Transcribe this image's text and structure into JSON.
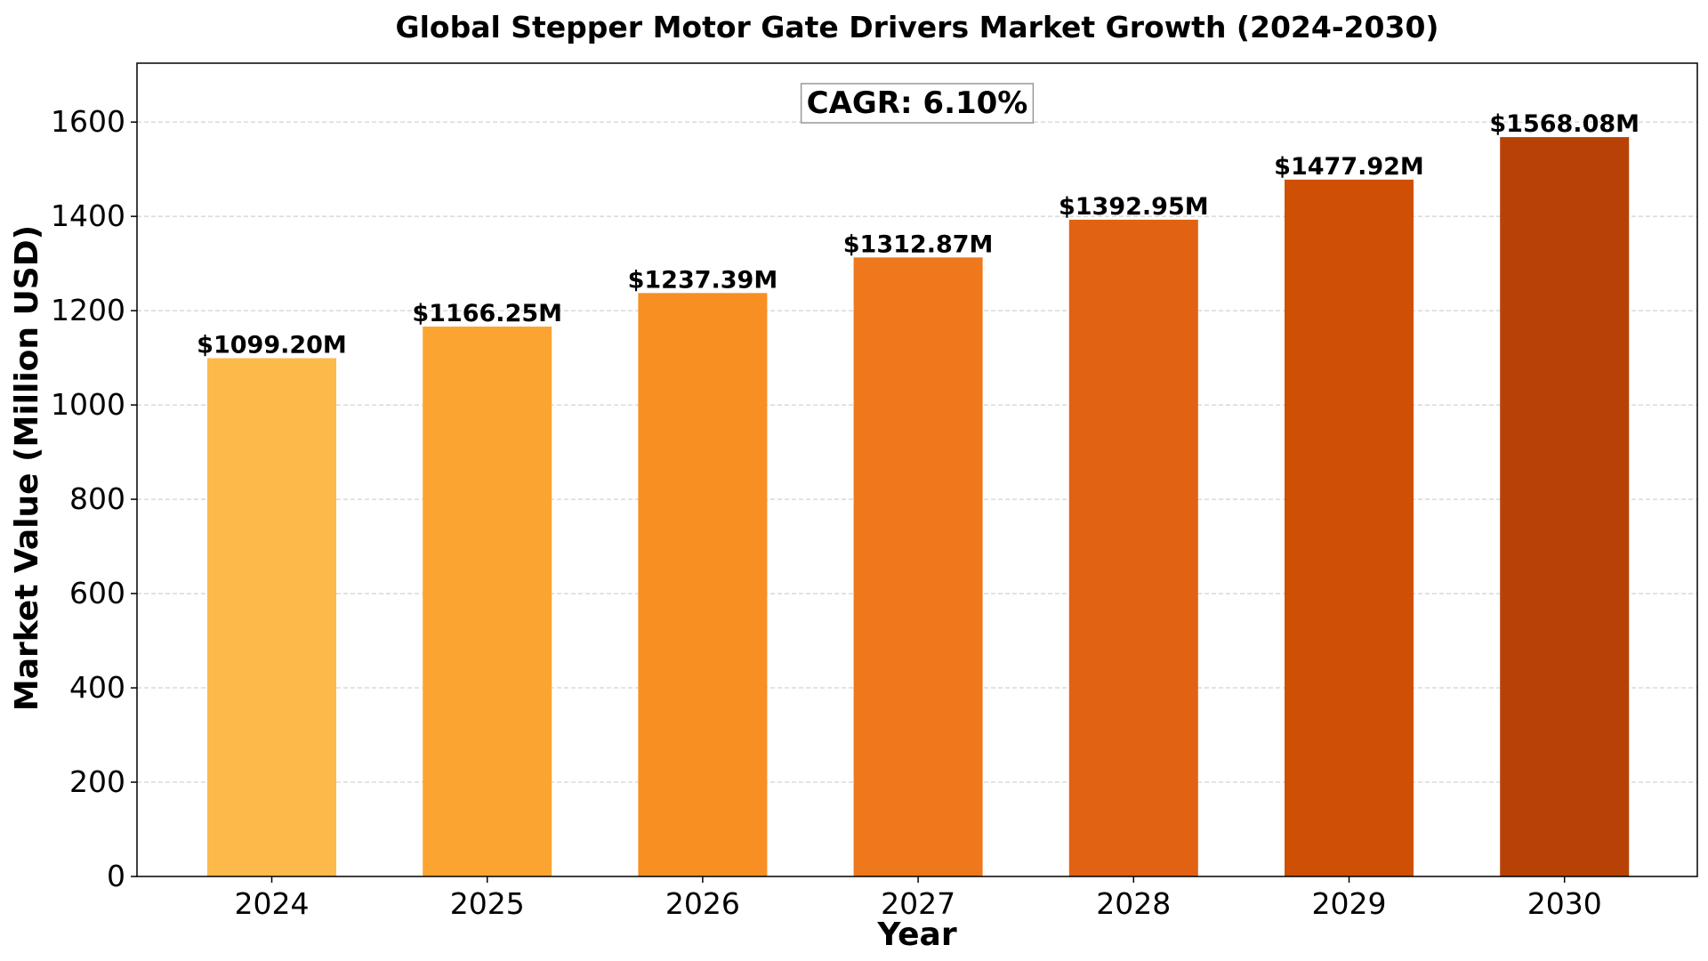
{
  "chart_data": {
    "type": "bar",
    "title": "Global Stepper Motor Gate Drivers Market Growth (2024-2030)",
    "xlabel": "Year",
    "ylabel": "Market Value (Million USD)",
    "categories": [
      "2024",
      "2025",
      "2026",
      "2027",
      "2028",
      "2029",
      "2030"
    ],
    "values": [
      1099.2,
      1166.25,
      1237.39,
      1312.87,
      1392.95,
      1477.92,
      1568.08
    ],
    "data_labels": [
      "$1099.20M",
      "$1166.25M",
      "$1237.39M",
      "$1312.87M",
      "$1392.95M",
      "$1477.92M",
      "$1568.08M"
    ],
    "bar_colors": [
      "#fdb94a",
      "#fca432",
      "#f78f23",
      "#ee781b",
      "#e16212",
      "#cf5004",
      "#b84205"
    ],
    "ylim": [
      0,
      1724.89
    ],
    "yticks": [
      0,
      200,
      400,
      600,
      800,
      1000,
      1200,
      1400,
      1600
    ],
    "grid": "y-dashed",
    "annotation": "CAGR: 6.10%"
  }
}
